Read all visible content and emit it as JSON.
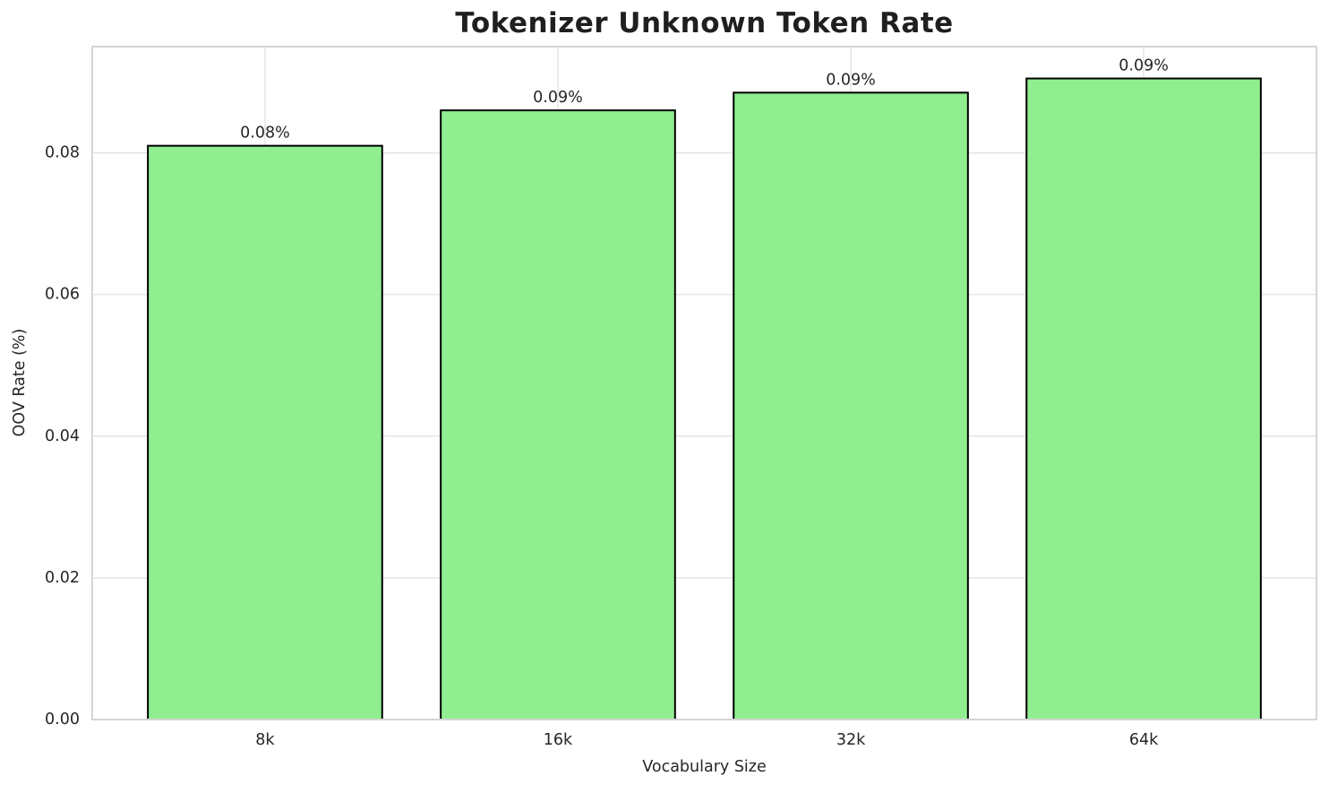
{
  "chart_data": {
    "type": "bar",
    "title": "Tokenizer Unknown Token Rate",
    "xlabel": "Vocabulary Size",
    "ylabel": "OOV Rate (%)",
    "categories": [
      "8k",
      "16k",
      "32k",
      "64k"
    ],
    "values": [
      0.081,
      0.086,
      0.0885,
      0.0905
    ],
    "bar_labels": [
      "0.08%",
      "0.09%",
      "0.09%",
      "0.09%"
    ],
    "ylim": [
      0,
      0.095
    ],
    "yticks": [
      0,
      0.02,
      0.04,
      0.06,
      0.08
    ],
    "ytick_labels": [
      "0.00",
      "0.02",
      "0.04",
      "0.06",
      "0.08"
    ],
    "grid": true,
    "legend": "none",
    "bar_color": "#90EE90",
    "bar_edge_color": "#000000",
    "grid_color": "#e4e4e4",
    "spine_color": "#d5d5d5",
    "text_color": "#262626",
    "background": "#ffffff"
  }
}
